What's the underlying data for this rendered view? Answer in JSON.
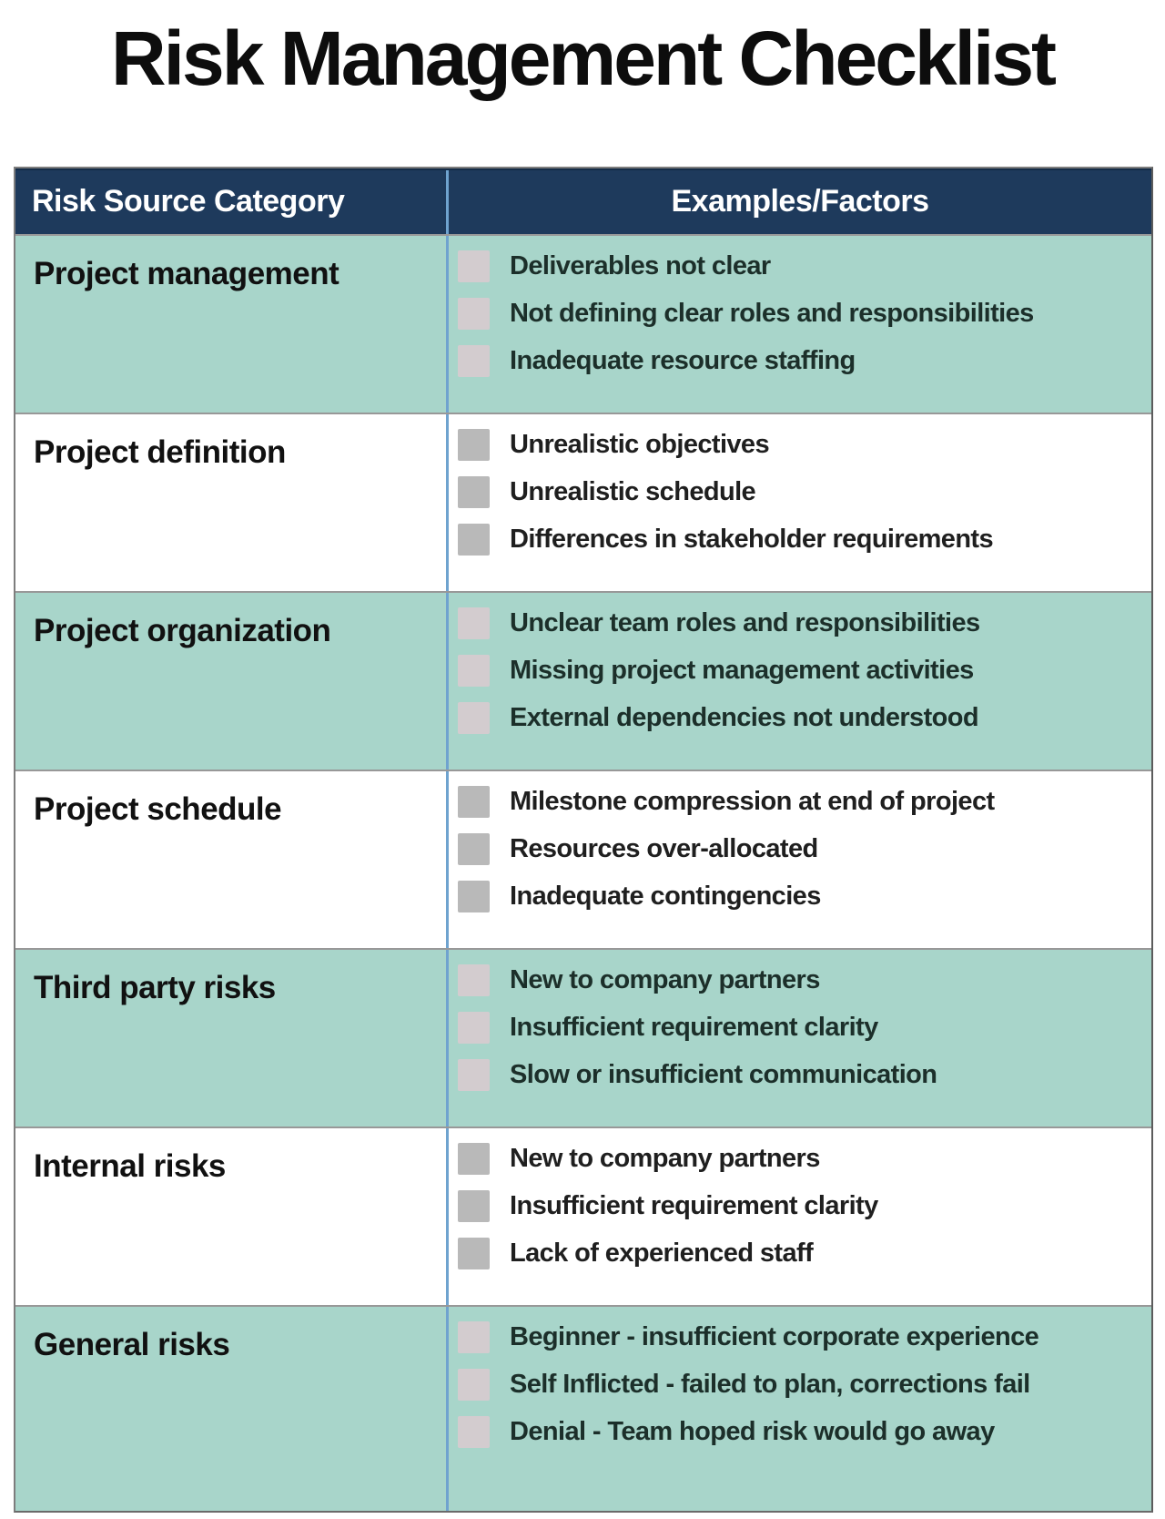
{
  "title": "Risk Management Checklist",
  "table": {
    "headers": [
      "Risk Source Category",
      "Examples/Factors"
    ],
    "rows": [
      {
        "category": "Project management",
        "items": [
          "Deliverables not clear",
          "Not defining clear roles and responsibilities",
          "Inadequate resource staffing"
        ]
      },
      {
        "category": "Project definition",
        "items": [
          "Unrealistic objectives",
          "Unrealistic schedule",
          "Differences in stakeholder requirements"
        ]
      },
      {
        "category": "Project organization",
        "items": [
          "Unclear team roles and responsibilities",
          "Missing project management activities",
          "External dependencies not understood"
        ]
      },
      {
        "category": "Project schedule",
        "items": [
          "Milestone compression at end of project",
          "Resources over-allocated",
          "Inadequate contingencies"
        ]
      },
      {
        "category": "Third party risks",
        "items": [
          "New to company partners",
          "Insufficient requirement clarity",
          "Slow or insufficient communication"
        ]
      },
      {
        "category": "Internal risks",
        "items": [
          "New to company partners",
          "Insufficient requirement clarity",
          "Lack of experienced staff"
        ]
      },
      {
        "category": "General risks",
        "items": [
          "Beginner - insufficient corporate experience",
          "Self Inflicted - failed to plan, corrections fail",
          "Denial - Team hoped risk would go away"
        ]
      }
    ]
  },
  "icons": {
    "checkbox": "empty-square"
  },
  "colors": {
    "header_bg": "#1e3a5c",
    "header_text": "#ffffff",
    "row_teal": "#a8d5ca",
    "row_white": "#ffffff",
    "checkbox_teal_row": "#d3cccf",
    "checkbox_white_row": "#b9b9b9",
    "divider": "#6fa3cf",
    "row_border": "#989898",
    "outer_border": "#7d7d7d",
    "title_color": "#0d0d0d",
    "category_text": "#111111",
    "item_text": "#1f1f1f"
  }
}
